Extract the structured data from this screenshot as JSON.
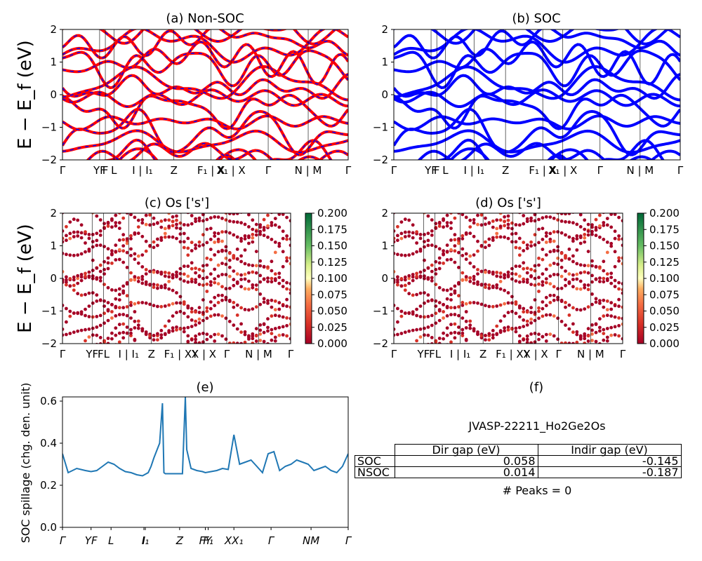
{
  "panels": {
    "a": {
      "title": "(a) Non-SOC"
    },
    "b": {
      "title": "(b) SOC"
    },
    "c": {
      "title": "(c)  Os ['s']"
    },
    "d": {
      "title": "(d) Os ['s']"
    },
    "e": {
      "title": "(e)"
    },
    "f": {
      "title": "(f)"
    }
  },
  "ylabel_band": "E − E_f (eV)",
  "ylabel_spillage": "SOC spillage (chg. den. unit)",
  "band_yticks": [
    "2",
    "1",
    "0",
    "−1",
    "−2"
  ],
  "kpath_ticks_ab": [
    "Γ",
    "YF",
    "F",
    "L",
    "I | I₁",
    "Z",
    "F₁ | X",
    "X₁ | X",
    "Γ",
    "N | M",
    "Γ"
  ],
  "kpath_ticks_cd": [
    "Γ",
    "YF",
    "FL",
    "I | I₁",
    "Z",
    "F₁ | XY",
    "X | X",
    "Γ",
    "N | M",
    "Γ"
  ],
  "colorbar_ticks": [
    "0.200",
    "0.175",
    "0.150",
    "0.125",
    "0.100",
    "0.075",
    "0.050",
    "0.025",
    "0.000"
  ],
  "spillage_yticks": [
    "0.6",
    "0.4",
    "0.2",
    "0.0"
  ],
  "spillage_xticks": [
    "Γ",
    "YF",
    "L",
    "I",
    "I₁",
    "Z",
    "FY",
    "F₁",
    "XX₁",
    "Γ",
    "NM",
    "Γ"
  ],
  "colors": {
    "nonsoc_band": "#ff0000",
    "nonsoc_dash": "#0000ff",
    "soc_band": "#0000ff",
    "spillage_line": "#1f77b4"
  },
  "table": {
    "material": "JVASP-22211_Ho2Ge2Os",
    "headers": [
      "Dir gap (eV)",
      "Indir gap (eV)"
    ],
    "rows": [
      {
        "label": "SOC",
        "dir": "0.058",
        "indir": "-0.145"
      },
      {
        "label": "NSOC",
        "dir": "0.014",
        "indir": "-0.187"
      }
    ],
    "peaks": "# Peaks = 0"
  },
  "chart_data": [
    {
      "type": "line",
      "panel": "a",
      "title": "(a) Non-SOC",
      "ylim": [
        -2,
        2
      ],
      "series_color": "red-blue dashed"
    },
    {
      "type": "line",
      "panel": "b",
      "title": "(b) SOC",
      "ylim": [
        -2,
        2
      ],
      "series_color": "blue"
    },
    {
      "type": "scatter",
      "panel": "c",
      "title": "(c)  Os ['s']",
      "ylim": [
        -2,
        2
      ],
      "colormap": "RdYlGn",
      "clim": [
        0,
        0.2
      ]
    },
    {
      "type": "scatter",
      "panel": "d",
      "title": "(d) Os ['s']",
      "ylim": [
        -2,
        2
      ],
      "colormap": "RdYlGn",
      "clim": [
        0,
        0.2
      ]
    },
    {
      "type": "line",
      "panel": "e",
      "title": "(e)",
      "ylabel": "SOC spillage (chg. den. unit)",
      "ylim": [
        0,
        0.62
      ],
      "x": [
        0,
        0.02,
        0.05,
        0.08,
        0.1,
        0.12,
        0.14,
        0.16,
        0.18,
        0.2,
        0.22,
        0.24,
        0.26,
        0.28,
        0.3,
        0.31,
        0.32,
        0.34,
        0.35,
        0.355,
        0.36,
        0.4,
        0.42,
        0.43,
        0.435,
        0.45,
        0.47,
        0.49,
        0.5,
        0.52,
        0.54,
        0.56,
        0.58,
        0.6,
        0.62,
        0.64,
        0.66,
        0.68,
        0.7,
        0.72,
        0.74,
        0.76,
        0.78,
        0.8,
        0.82,
        0.84,
        0.86,
        0.88,
        0.9,
        0.92,
        0.94,
        0.96,
        0.98,
        1.0
      ],
      "y": [
        0.35,
        0.26,
        0.28,
        0.27,
        0.265,
        0.27,
        0.29,
        0.31,
        0.3,
        0.28,
        0.265,
        0.26,
        0.25,
        0.245,
        0.26,
        0.29,
        0.33,
        0.4,
        0.59,
        0.26,
        0.255,
        0.255,
        0.255,
        0.62,
        0.37,
        0.28,
        0.27,
        0.265,
        0.26,
        0.265,
        0.27,
        0.28,
        0.275,
        0.44,
        0.3,
        0.31,
        0.32,
        0.29,
        0.26,
        0.35,
        0.36,
        0.27,
        0.29,
        0.3,
        0.32,
        0.31,
        0.3,
        0.27,
        0.28,
        0.29,
        0.27,
        0.26,
        0.29,
        0.35
      ]
    }
  ]
}
